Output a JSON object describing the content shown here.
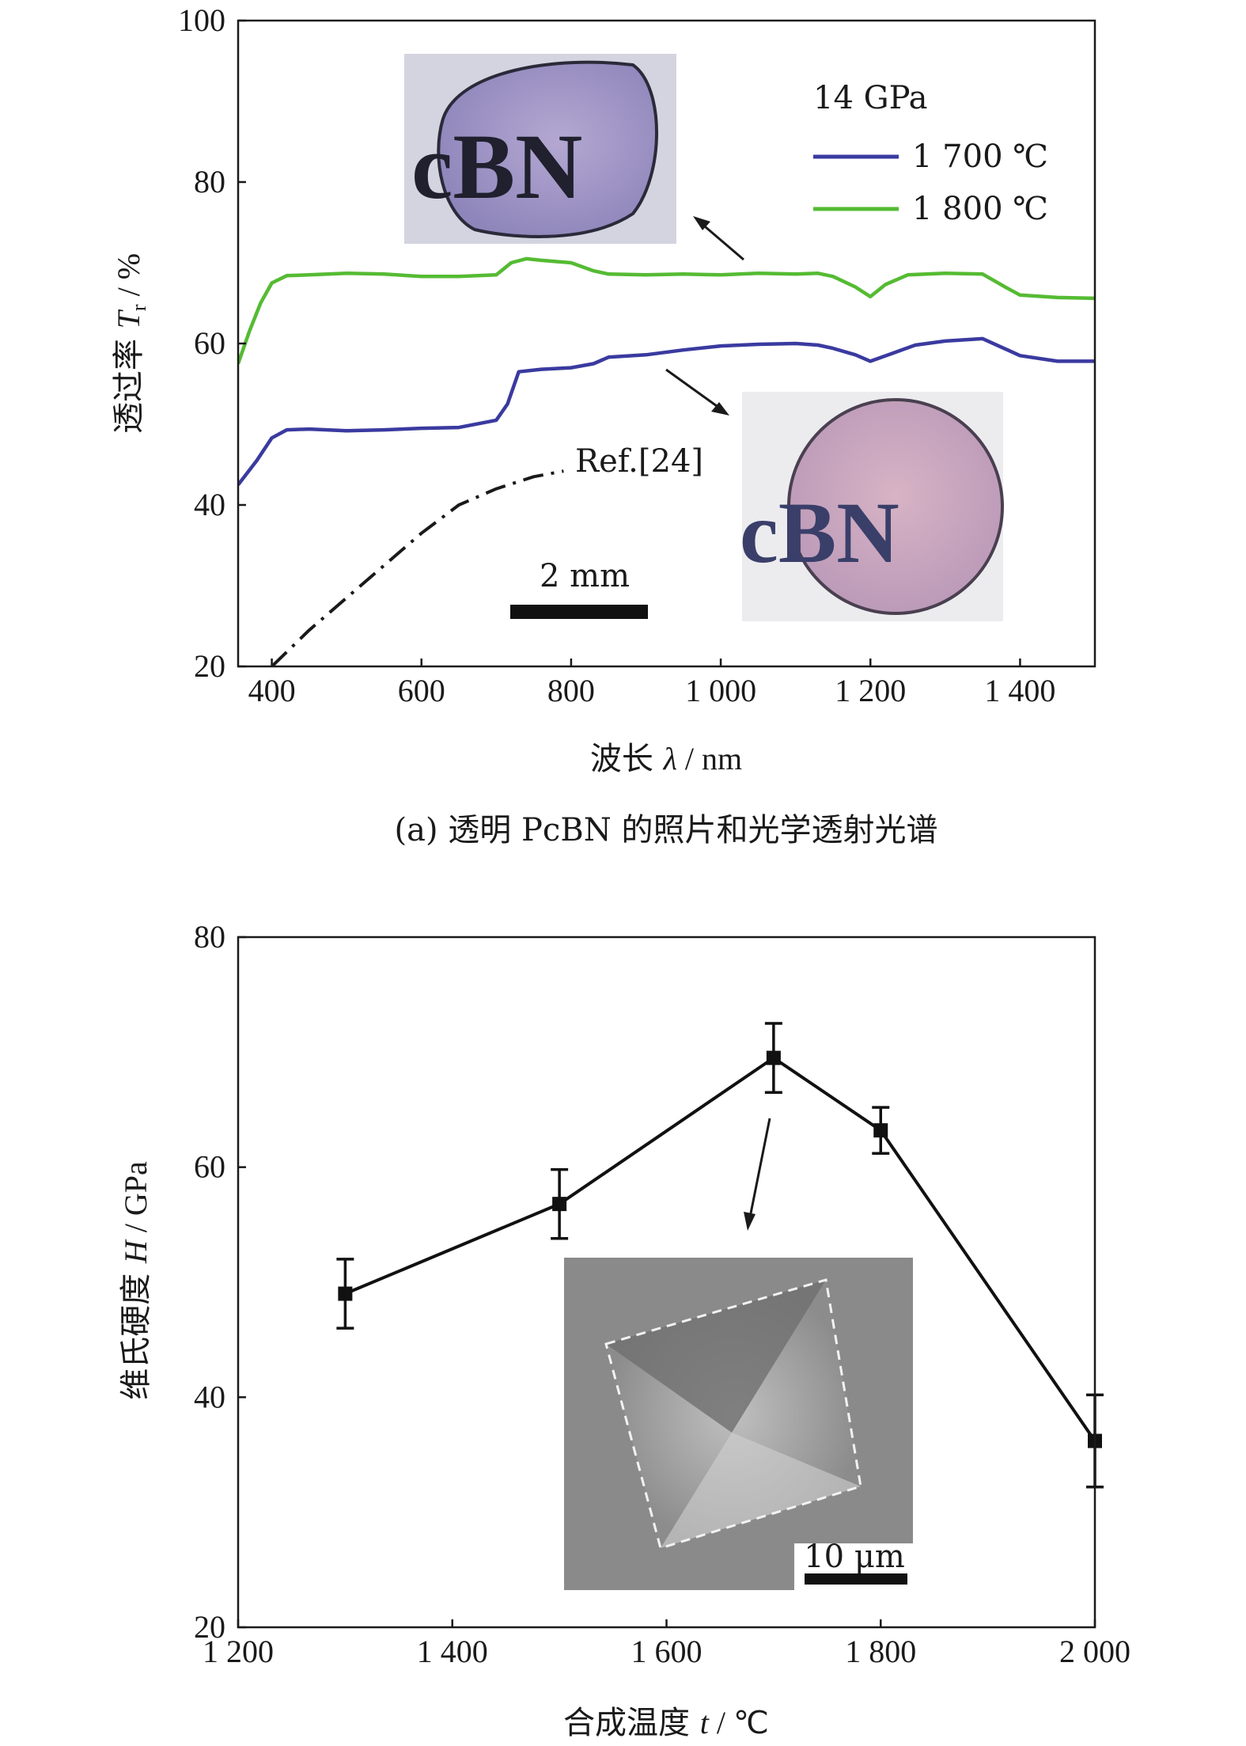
{
  "colors": {
    "series_1700": "#3a3aa0",
    "series_1800": "#55bb33",
    "ref": "#1a1a1a",
    "hardness": "#111111",
    "inset_photo_bg": "#c8c8d8",
    "inset_sem_bg": "#8a8a8a"
  },
  "panel_a": {
    "caption": "(a) 透明 PcBN 的照片和光学透射光谱",
    "legend_title": "14 GPa",
    "legend": [
      "1 700 ℃",
      "1 800 ℃"
    ],
    "ref_label": "Ref.[24]",
    "scale_bar_label": "2 mm",
    "inset_text_top": "cBN",
    "inset_text_bottom": "cBN",
    "ylabel_main": "透过率 ",
    "ylabel_var": "T",
    "ylabel_sub": "r",
    "ylabel_unit": " / %",
    "xlabel_main": "波长 ",
    "xlabel_var": "λ",
    "xlabel_unit": " / nm"
  },
  "panel_b": {
    "scale_bar_label": "10 μm",
    "ylabel_main": "维氏硬度 ",
    "ylabel_var": "H",
    "ylabel_unit": " / GPa",
    "xlabel_main": "合成温度 ",
    "xlabel_var": "t",
    "xlabel_unit": " / ℃"
  },
  "chart_data": [
    {
      "type": "line",
      "xlim": [
        355,
        1500
      ],
      "ylim": [
        20,
        100
      ],
      "xticks": [
        400,
        600,
        800,
        1000,
        1200,
        1400
      ],
      "xtick_labels": [
        "400",
        "600",
        "800",
        "1 000",
        "1 200",
        "1 400"
      ],
      "yticks": [
        20,
        40,
        60,
        80,
        100
      ],
      "ytick_labels": [
        "20",
        "40",
        "60",
        "80",
        "100"
      ],
      "series": [
        {
          "name": "1 700 ℃",
          "x": [
            355,
            380,
            400,
            420,
            450,
            500,
            550,
            600,
            650,
            700,
            715,
            730,
            760,
            800,
            830,
            850,
            900,
            950,
            1000,
            1050,
            1100,
            1130,
            1150,
            1180,
            1200,
            1230,
            1260,
            1300,
            1350,
            1400,
            1450,
            1500
          ],
          "y": [
            42.5,
            45.5,
            48.3,
            49.3,
            49.4,
            49.2,
            49.3,
            49.5,
            49.6,
            50.5,
            52.5,
            56.5,
            56.8,
            57.0,
            57.5,
            58.3,
            58.6,
            59.2,
            59.7,
            59.9,
            60.0,
            59.8,
            59.4,
            58.6,
            57.8,
            58.8,
            59.8,
            60.3,
            60.6,
            58.5,
            57.8,
            57.8
          ]
        },
        {
          "name": "1 800 ℃",
          "x": [
            355,
            370,
            385,
            400,
            420,
            450,
            500,
            550,
            600,
            650,
            700,
            720,
            740,
            760,
            800,
            830,
            850,
            900,
            950,
            1000,
            1050,
            1100,
            1130,
            1150,
            1180,
            1200,
            1220,
            1250,
            1300,
            1350,
            1380,
            1400,
            1450,
            1500
          ],
          "y": [
            57.5,
            61.5,
            65.0,
            67.5,
            68.4,
            68.5,
            68.7,
            68.6,
            68.3,
            68.3,
            68.5,
            70.0,
            70.5,
            70.3,
            70.0,
            69.0,
            68.6,
            68.5,
            68.6,
            68.5,
            68.7,
            68.6,
            68.7,
            68.3,
            67.0,
            65.8,
            67.3,
            68.5,
            68.7,
            68.6,
            67.0,
            66.0,
            65.7,
            65.6
          ]
        },
        {
          "name": "Ref.[24]",
          "x": [
            400,
            450,
            500,
            550,
            600,
            650,
            700,
            750,
            790
          ],
          "y": [
            20.0,
            24.5,
            28.5,
            32.5,
            36.5,
            40.0,
            42.0,
            43.5,
            44.2
          ]
        }
      ]
    },
    {
      "type": "line",
      "xlim": [
        1200,
        2000
      ],
      "ylim": [
        20,
        80
      ],
      "xticks": [
        1200,
        1400,
        1600,
        1800,
        2000
      ],
      "xtick_labels": [
        "1 200",
        "1 400",
        "1 600",
        "1 800",
        "2 000"
      ],
      "yticks": [
        20,
        40,
        60,
        80
      ],
      "ytick_labels": [
        "20",
        "40",
        "60",
        "80"
      ],
      "series": [
        {
          "x": [
            1300,
            1500,
            1700,
            1800,
            2000
          ],
          "y": [
            49.0,
            56.8,
            69.5,
            63.2,
            36.2
          ],
          "error": [
            3.0,
            3.0,
            3.0,
            2.0,
            4.0
          ]
        }
      ]
    }
  ]
}
